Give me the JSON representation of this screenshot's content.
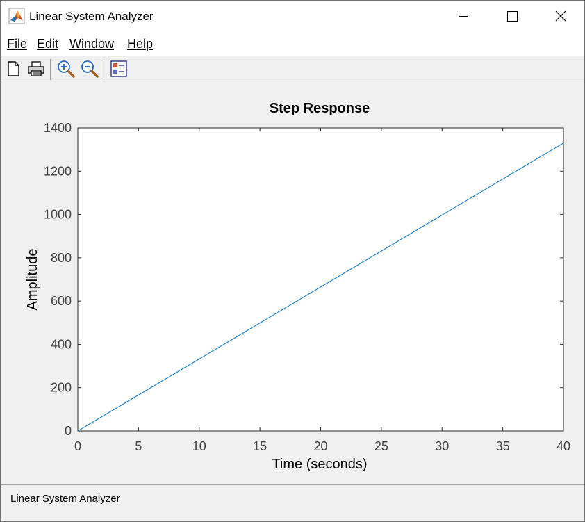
{
  "window": {
    "title": "Linear System Analyzer",
    "icon": "matlab-icon"
  },
  "menu": {
    "items": [
      "File",
      "Edit",
      "Window",
      "Help"
    ]
  },
  "toolbar": {
    "buttons": [
      "new-document-icon",
      "print-icon",
      "zoom-in-icon",
      "zoom-out-icon",
      "plot-configurations-icon"
    ]
  },
  "status": {
    "text": "Linear System Analyzer"
  },
  "colors": {
    "line": "#0072bd"
  },
  "chart_data": {
    "type": "line",
    "title": "Step Response",
    "xlabel": "Time (seconds)",
    "ylabel": "Amplitude",
    "xlim": [
      0,
      40
    ],
    "ylim": [
      0,
      1400
    ],
    "xticks": [
      0,
      5,
      10,
      15,
      20,
      25,
      30,
      35,
      40
    ],
    "yticks": [
      0,
      200,
      400,
      600,
      800,
      1000,
      1200,
      1400
    ],
    "grid": false,
    "series": [
      {
        "x": [
          0,
          40
        ],
        "y": [
          0,
          1330
        ]
      }
    ]
  }
}
